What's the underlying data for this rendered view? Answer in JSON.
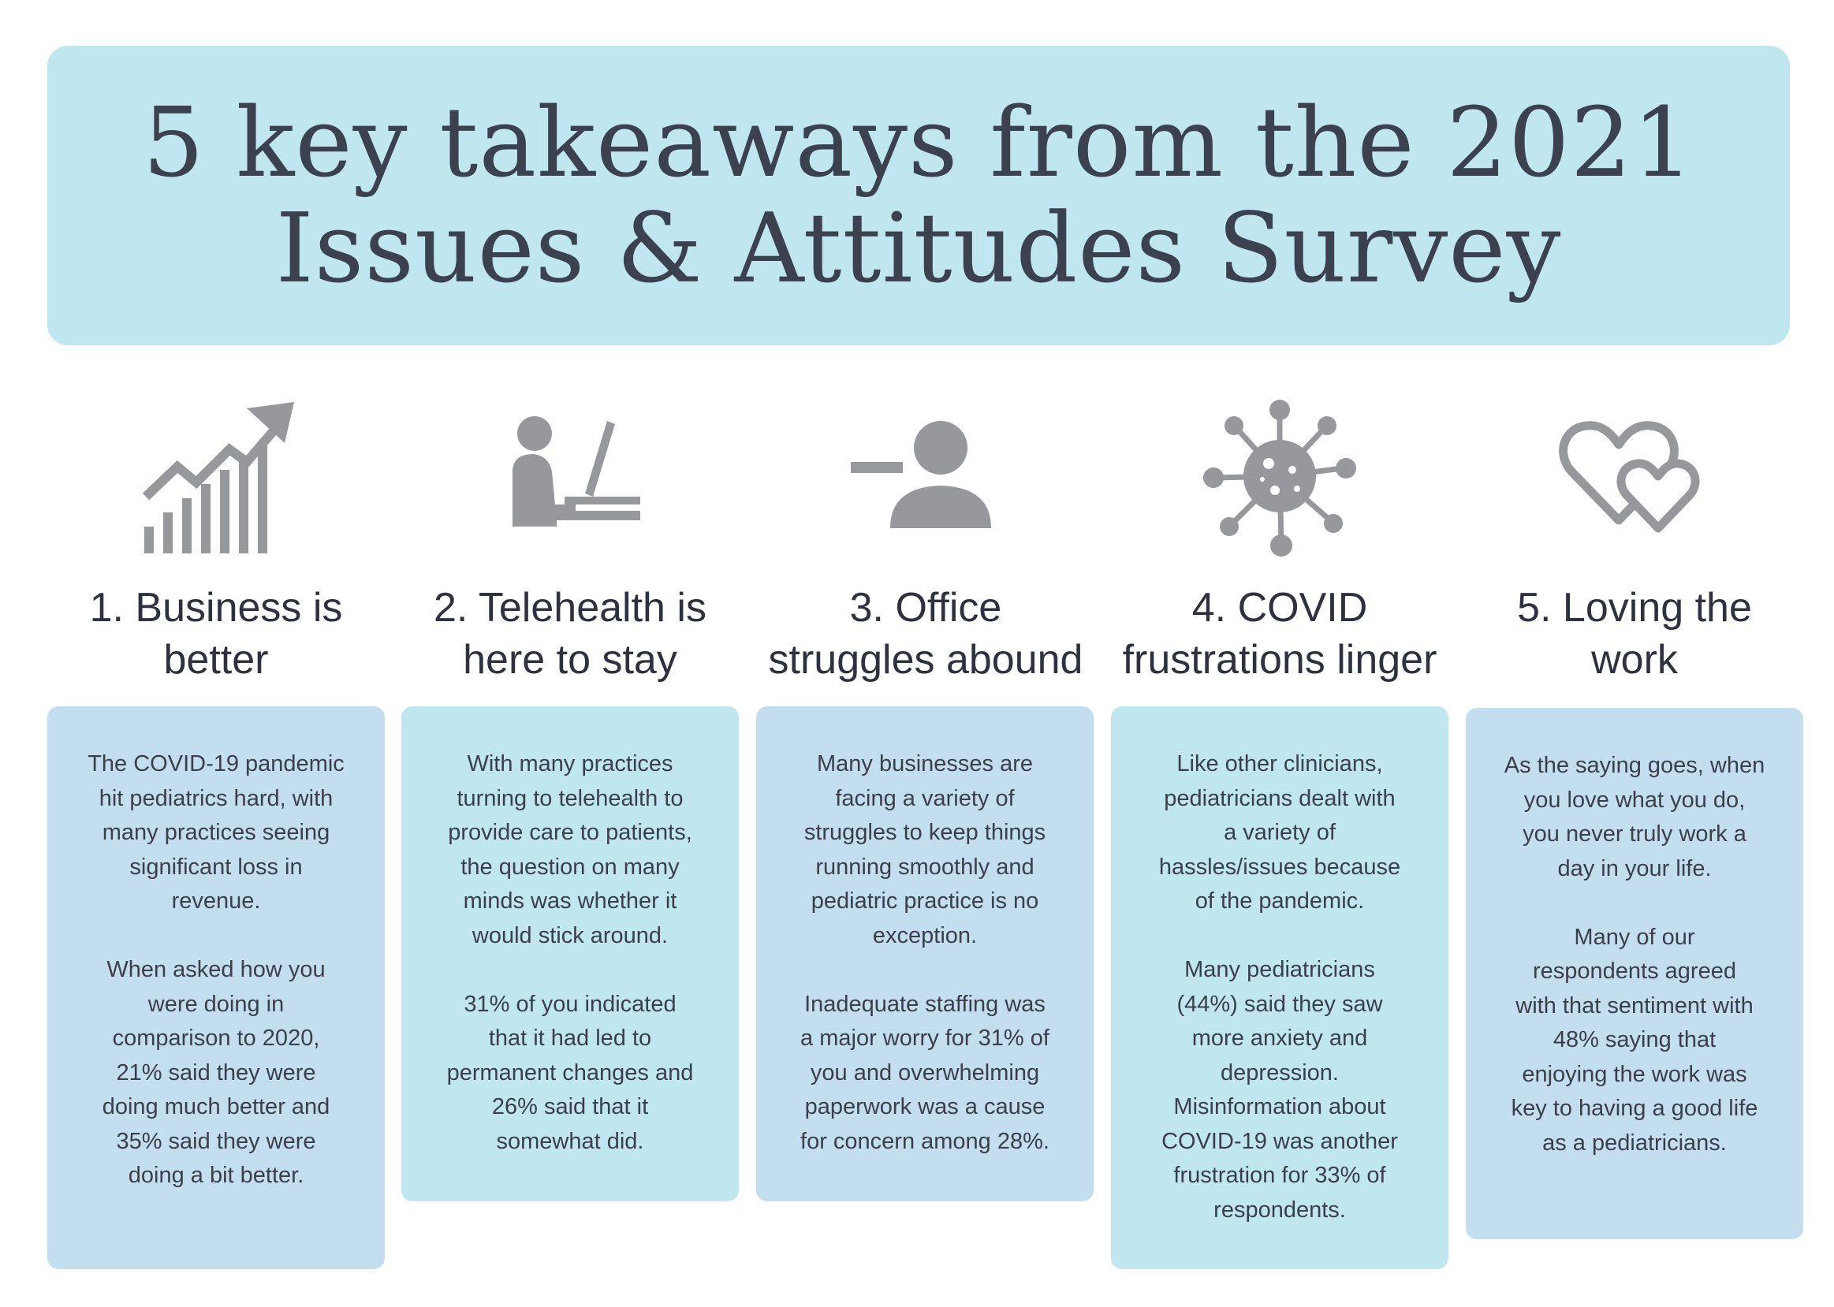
{
  "title": {
    "line1": "5 key takeaways from the 2021",
    "line2": "Issues & Attitudes Survey"
  },
  "colors": {
    "banner": "#c0e6ef",
    "card_blue": "#c3deee",
    "card_aqua": "#c0e7f0",
    "icon": "#97989c",
    "text": "#3f4350"
  },
  "takeaways": [
    {
      "icon": "growth-chart-icon",
      "heading": [
        "1. Business is",
        "better"
      ],
      "paragraphs": [
        [
          "The COVID-19 pandemic",
          "hit pediatrics hard, with",
          "many practices seeing",
          "significant loss in",
          "revenue."
        ],
        [
          "When asked how you",
          "were doing in",
          "comparison to 2020,",
          "21% said they were",
          "doing much better and",
          "35% said they were",
          "doing a bit better."
        ]
      ]
    },
    {
      "icon": "person-at-computer-icon",
      "heading": [
        "2. Telehealth is",
        "here to stay"
      ],
      "paragraphs": [
        [
          "With many practices",
          "turning to telehealth to",
          "provide care to patients,",
          "the question on many",
          "minds was whether it",
          "would stick around."
        ],
        [
          "31% of you indicated",
          "that it had led to",
          "permanent changes and",
          "26% said that it",
          "somewhat did."
        ]
      ]
    },
    {
      "icon": "remove-user-icon",
      "heading": [
        "3. Office",
        "struggles abound"
      ],
      "paragraphs": [
        [
          "Many businesses are",
          "facing a variety of",
          "struggles to keep things",
          "running smoothly and",
          "pediatric practice is no",
          "exception."
        ],
        [
          "Inadequate staffing  was",
          "a major worry for 31% of",
          "you and overwhelming",
          "paperwork was a cause",
          "for concern among 28%."
        ]
      ]
    },
    {
      "icon": "virus-icon",
      "heading": [
        "4. COVID",
        "frustrations linger"
      ],
      "paragraphs": [
        [
          "Like other clinicians,",
          "pediatricians dealt with",
          "a variety of",
          "hassles/issues because",
          "of the pandemic."
        ],
        [
          "Many pediatricians",
          "(44%) said they saw",
          "more anxiety and",
          "depression.",
          "Misinformation about",
          "COVID-19 was another",
          "frustration for 33% of",
          "respondents."
        ]
      ]
    },
    {
      "icon": "two-hearts-icon",
      "heading": [
        "5. Loving the",
        "work"
      ],
      "paragraphs": [
        [
          "As the saying goes, when",
          "you love what you do,",
          "you never truly work a",
          "day in your life."
        ],
        [
          "Many of our",
          "respondents agreed",
          "with that sentiment with",
          "48% saying that",
          "enjoying the work was",
          "key to having a good life",
          "as a pediatricians."
        ]
      ]
    }
  ]
}
